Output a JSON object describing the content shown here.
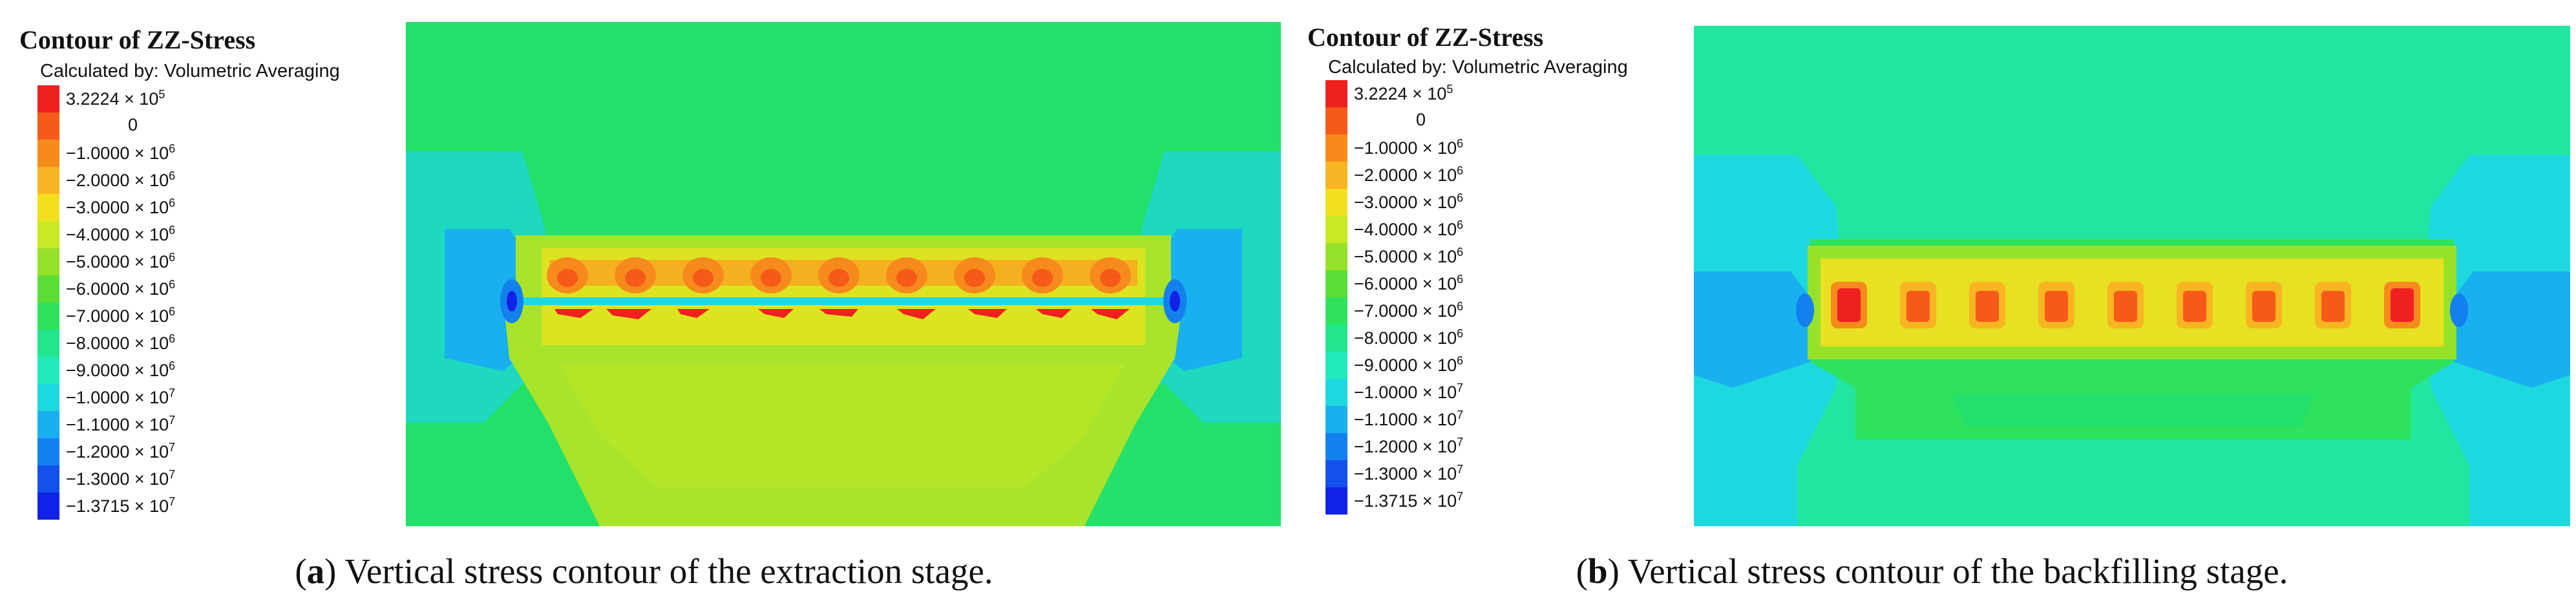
{
  "legend_title": "Contour of ZZ-Stress",
  "legend_subtitle": "Calculated by: Volumetric Averaging",
  "legend_entries": [
    {
      "mantissa": "3.2224",
      "exp": "5",
      "color": "#ee2020"
    },
    {
      "mantissa": "0",
      "exp": "",
      "color": "#f55a18"
    },
    {
      "mantissa": "−1.0000",
      "exp": "6",
      "color": "#f68a1c"
    },
    {
      "mantissa": "−2.0000",
      "exp": "6",
      "color": "#f8b422"
    },
    {
      "mantissa": "−3.0000",
      "exp": "6",
      "color": "#f2e01e"
    },
    {
      "mantissa": "−4.0000",
      "exp": "6",
      "color": "#c8ea24"
    },
    {
      "mantissa": "−5.0000",
      "exp": "6",
      "color": "#96e22a"
    },
    {
      "mantissa": "−6.0000",
      "exp": "6",
      "color": "#5ade38"
    },
    {
      "mantissa": "−7.0000",
      "exp": "6",
      "color": "#2ee25e"
    },
    {
      "mantissa": "−8.0000",
      "exp": "6",
      "color": "#22e68e"
    },
    {
      "mantissa": "−9.0000",
      "exp": "6",
      "color": "#20eab8"
    },
    {
      "mantissa": "−1.0000",
      "exp": "7",
      "color": "#1ed8e0"
    },
    {
      "mantissa": "−1.1000",
      "exp": "7",
      "color": "#18b0ee"
    },
    {
      "mantissa": "−1.2000",
      "exp": "7",
      "color": "#1480ee"
    },
    {
      "mantissa": "−1.3000",
      "exp": "7",
      "color": "#1450ec"
    },
    {
      "mantissa": "−1.3715",
      "exp": "7",
      "color": "#1022e6"
    }
  ],
  "panels": [
    {
      "letter": "a",
      "caption": "Vertical stress contour of the extraction stage."
    },
    {
      "letter": "b",
      "caption": "Vertical stress contour of the backfilling stage."
    }
  ],
  "colors": {
    "green_bg": "#22e06a",
    "lime": "#9ae230",
    "yellow_green": "#c8ea24",
    "yellow": "#f2e01e",
    "orange": "#f68a1c",
    "red": "#ee2020",
    "cyan": "#1ed8e0",
    "aqua_green": "#22e6a0",
    "blue": "#1480ee",
    "deep_blue": "#1022e6"
  }
}
